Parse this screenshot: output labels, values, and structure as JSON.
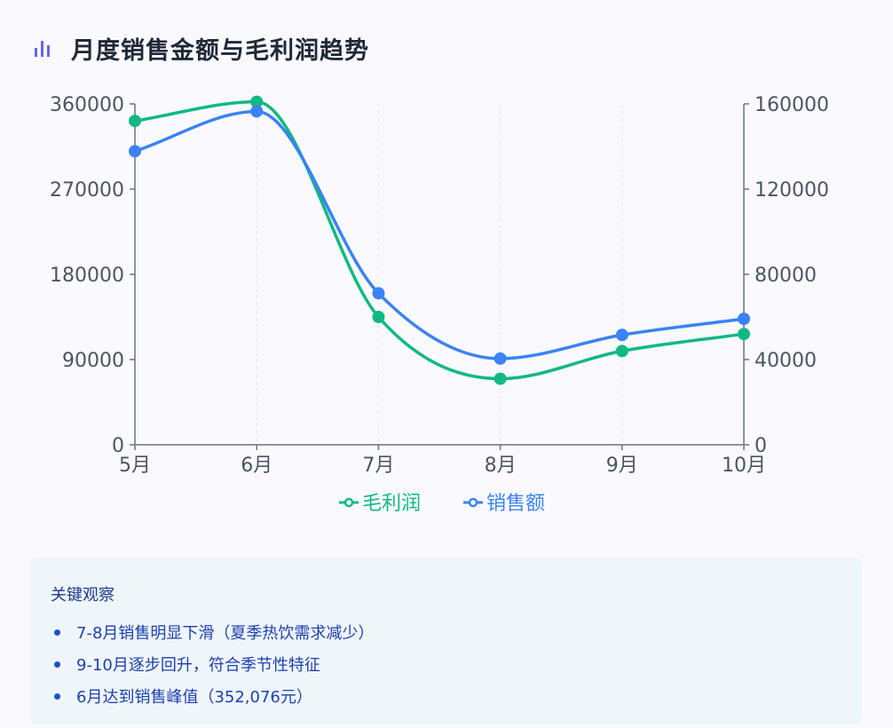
{
  "header": {
    "title": "月度销售金额与毛利润趋势",
    "icon": "bar-chart-icon"
  },
  "colors": {
    "profit": "#10b981",
    "sales": "#3b82f6",
    "axis": "#6b7280",
    "title": "#1f2937",
    "accent": "#6366f1"
  },
  "chart_data": {
    "type": "line",
    "smooth": true,
    "categories": [
      "5月",
      "6月",
      "7月",
      "8月",
      "9月",
      "10月"
    ],
    "series": [
      {
        "name": "毛利润",
        "axis": "right",
        "color": "#10b981",
        "values": [
          152000,
          161000,
          60000,
          31000,
          44000,
          52000
        ]
      },
      {
        "name": "销售额",
        "axis": "left",
        "color": "#3b82f6",
        "values": [
          310000,
          352076,
          160000,
          91000,
          116000,
          133000
        ]
      }
    ],
    "left_axis": {
      "min": 0,
      "max": 360000,
      "ticks": [
        "0",
        "90000",
        "180000",
        "270000",
        "360000"
      ]
    },
    "right_axis": {
      "min": 0,
      "max": 160000,
      "ticks": [
        "0",
        "40000",
        "80000",
        "120000",
        "160000"
      ]
    },
    "legend": {
      "position": "bottom",
      "items": [
        "毛利润",
        "销售额"
      ]
    },
    "grid": "vertical-dashed"
  },
  "observations": {
    "title": "关键观察",
    "items": [
      "7-8月销售明显下滑（夏季热饮需求减少）",
      "9-10月逐步回升，符合季节性特征",
      "6月达到销售峰值（352,076元）"
    ]
  }
}
